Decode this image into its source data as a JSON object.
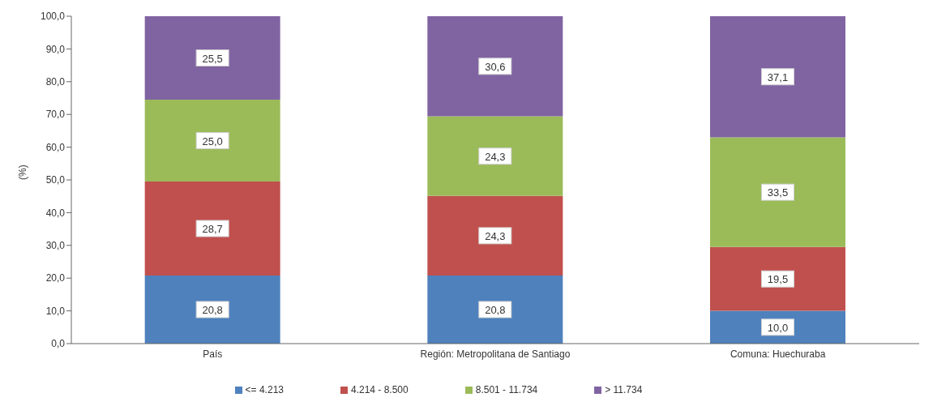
{
  "chart_data": {
    "type": "bar",
    "stacked": true,
    "ylabel": "(%)",
    "categories": [
      "País",
      "Región: Metropolitana de Santiago",
      "Comuna: Huechuraba"
    ],
    "series": [
      {
        "name": "<= 4.213",
        "color": "#4f81bd",
        "values": [
          20.8,
          20.8,
          10.0
        ],
        "value_labels": [
          "20,8",
          "20,8",
          "10,0"
        ]
      },
      {
        "name": "4.214 - 8.500",
        "color": "#c0504d",
        "values": [
          28.7,
          24.3,
          19.5
        ],
        "value_labels": [
          "28,7",
          "24,3",
          "19,5"
        ]
      },
      {
        "name": "8.501 - 11.734",
        "color": "#9bbb59",
        "values": [
          25.0,
          24.3,
          33.5
        ],
        "value_labels": [
          "25,0",
          "24,3",
          "33,5"
        ]
      },
      {
        "name": "> 11.734",
        "color": "#8064a2",
        "values": [
          25.5,
          30.6,
          37.1
        ],
        "value_labels": [
          "25,5",
          "30,6",
          "37,1"
        ]
      }
    ],
    "ylim": [
      0,
      100
    ],
    "yticks": [
      {
        "value": 0,
        "label": "0,0"
      },
      {
        "value": 10,
        "label": "10,0"
      },
      {
        "value": 20,
        "label": "20,0"
      },
      {
        "value": 30,
        "label": "30,0"
      },
      {
        "value": 40,
        "label": "40,0"
      },
      {
        "value": 50,
        "label": "50,0"
      },
      {
        "value": 60,
        "label": "60,0"
      },
      {
        "value": 70,
        "label": "70,0"
      },
      {
        "value": 80,
        "label": "80,0"
      },
      {
        "value": 90,
        "label": "90,0"
      },
      {
        "value": 100,
        "label": "100,0"
      }
    ],
    "grid": false,
    "legend": "bottom"
  }
}
